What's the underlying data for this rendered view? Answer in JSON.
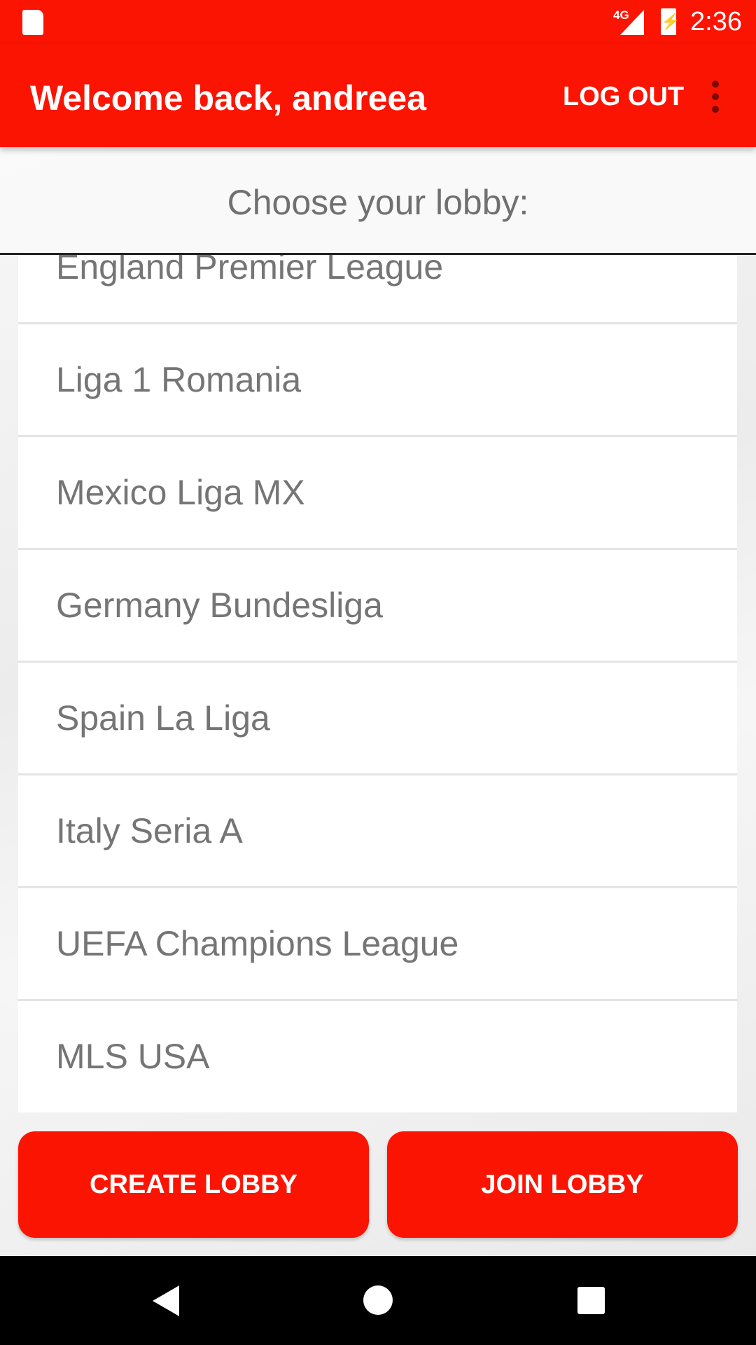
{
  "status_bar": {
    "network": "4G",
    "time": "2:36",
    "icons": [
      "sd-card-icon",
      "signal-icon",
      "battery-charging-icon"
    ]
  },
  "toolbar": {
    "title": "Welcome back, andreea",
    "logout_label": "LOG OUT",
    "menu_icon": "more-vert-icon"
  },
  "header": {
    "text": "Choose your lobby:"
  },
  "lobbies": [
    "England Premier League",
    "Liga 1 Romania",
    "Mexico Liga MX",
    "Germany Bundesliga",
    "Spain La Liga",
    "Italy Seria A",
    "UEFA Champions League",
    "MLS USA"
  ],
  "buttons": {
    "create": "CREATE LOBBY",
    "join": "JOIN LOBBY"
  },
  "colors": {
    "accent": "#fc1403",
    "text": "#757575"
  }
}
